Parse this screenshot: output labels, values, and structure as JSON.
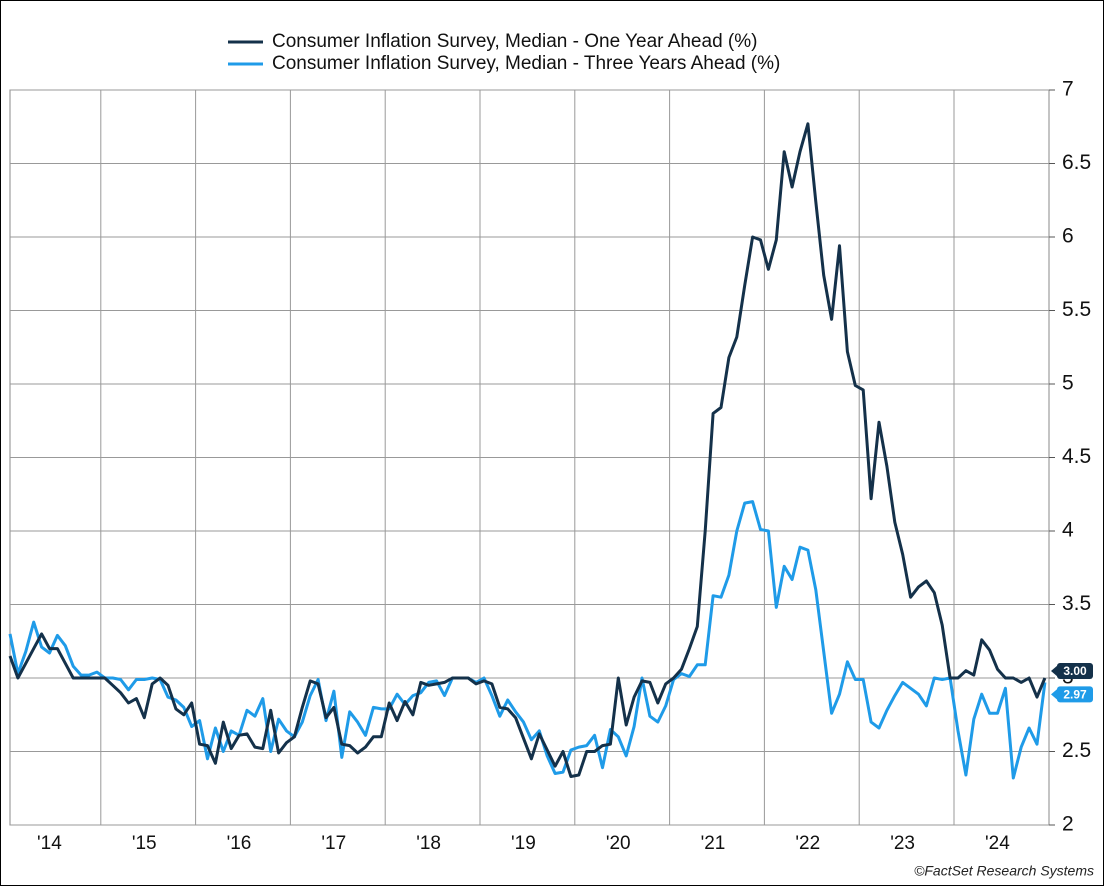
{
  "chart_data": {
    "type": "line",
    "categories": [
      null,
      null,
      null,
      null,
      null,
      null,
      "'14",
      null,
      null,
      null,
      null,
      null,
      null,
      null,
      null,
      null,
      null,
      null,
      "'15",
      null,
      null,
      null,
      null,
      null,
      null,
      null,
      null,
      null,
      null,
      null,
      "'16",
      null,
      null,
      null,
      null,
      null,
      null,
      null,
      null,
      null,
      null,
      null,
      "'17",
      null,
      null,
      null,
      null,
      null,
      null,
      null,
      null,
      null,
      null,
      null,
      "'18",
      null,
      null,
      null,
      null,
      null,
      null,
      null,
      null,
      null,
      null,
      null,
      "'19",
      null,
      null,
      null,
      null,
      null,
      null,
      null,
      null,
      null,
      null,
      null,
      "'20",
      null,
      null,
      null,
      null,
      null,
      null,
      null,
      null,
      null,
      null,
      null,
      "'21",
      null,
      null,
      null,
      null,
      null,
      null,
      null,
      null,
      null,
      null,
      null,
      "'22",
      null,
      null,
      null,
      null,
      null,
      null,
      null,
      null,
      null,
      null,
      null,
      "'23",
      null,
      null,
      null,
      null,
      null,
      null,
      null,
      null,
      null,
      null,
      null,
      "'24",
      null,
      null,
      null,
      null,
      null
    ],
    "series": [
      {
        "name": "Consumer Inflation Survey, Median - One Year Ahead (%)",
        "color": "#14314a",
        "values": [
          3.15,
          3.0,
          3.1,
          3.2,
          3.3,
          3.2,
          3.2,
          3.1,
          3.0,
          3.0,
          3.0,
          3.0,
          3.0,
          2.95,
          2.9,
          2.83,
          2.86,
          2.73,
          2.96,
          3.0,
          2.95,
          2.79,
          2.75,
          2.83,
          2.55,
          2.54,
          2.42,
          2.7,
          2.52,
          2.61,
          2.62,
          2.53,
          2.52,
          2.78,
          2.49,
          2.56,
          2.6,
          2.8,
          2.98,
          2.96,
          2.73,
          2.8,
          2.55,
          2.54,
          2.49,
          2.53,
          2.6,
          2.6,
          2.83,
          2.71,
          2.84,
          2.75,
          2.97,
          2.95,
          2.96,
          2.97,
          3.0,
          3.0,
          3.0,
          2.96,
          2.98,
          2.96,
          2.8,
          2.79,
          2.73,
          2.59,
          2.45,
          2.62,
          2.51,
          2.4,
          2.5,
          2.33,
          2.34,
          2.5,
          2.5,
          2.54,
          2.55,
          3.0,
          2.68,
          2.87,
          2.98,
          2.97,
          2.83,
          2.96,
          3.0,
          3.06,
          3.2,
          3.35,
          4.0,
          4.8,
          4.84,
          5.18,
          5.32,
          5.67,
          6.0,
          5.98,
          5.78,
          5.98,
          6.58,
          6.34,
          6.58,
          6.77,
          6.24,
          5.74,
          5.44,
          5.94,
          5.22,
          4.99,
          4.96,
          4.22,
          4.74,
          4.44,
          4.06,
          3.84,
          3.55,
          3.62,
          3.66,
          3.58,
          3.36,
          3.0,
          3.0,
          3.05,
          3.02,
          3.26,
          3.19,
          3.06,
          3.0,
          3.0,
          2.97,
          3.0,
          2.87,
          3.0
        ],
        "value_labels": [
          null,
          null,
          null,
          null,
          null,
          null,
          null,
          null,
          null,
          null,
          null,
          null,
          null,
          null,
          null,
          null,
          null,
          null,
          null,
          null,
          null,
          null,
          null,
          null,
          null,
          null,
          null,
          null,
          null,
          null,
          null,
          null,
          null,
          null,
          null,
          null,
          null,
          null,
          null,
          null,
          null,
          null,
          null,
          null,
          null,
          null,
          null,
          null,
          null,
          null,
          null,
          null,
          null,
          null,
          null,
          null,
          null,
          null,
          null,
          null,
          null,
          null,
          null,
          null,
          null,
          null,
          null,
          null,
          null,
          null,
          null,
          null,
          null,
          null,
          null,
          null,
          null,
          null,
          null,
          null,
          null,
          null,
          null,
          null,
          null,
          null,
          null,
          null,
          null,
          null,
          null,
          null,
          null,
          null,
          null,
          null,
          null,
          null,
          null,
          null,
          null,
          null,
          null,
          null,
          null,
          null,
          null,
          null,
          null,
          null,
          null,
          null,
          null,
          null,
          null,
          null,
          null,
          null,
          null,
          null,
          null,
          null,
          null,
          null,
          null,
          null,
          null,
          null,
          null,
          null,
          null,
          "3.00"
        ]
      },
      {
        "name": "Consumer Inflation Survey, Median - Three Years Ahead (%)",
        "color": "#1f9be8",
        "values": [
          3.3,
          3.03,
          3.18,
          3.38,
          3.21,
          3.17,
          3.29,
          3.22,
          3.08,
          3.02,
          3.02,
          3.04,
          3.0,
          3.0,
          2.99,
          2.92,
          2.99,
          2.99,
          3.0,
          2.99,
          2.87,
          2.85,
          2.8,
          2.67,
          2.71,
          2.45,
          2.66,
          2.5,
          2.64,
          2.61,
          2.78,
          2.74,
          2.86,
          2.5,
          2.72,
          2.64,
          2.6,
          2.7,
          2.88,
          2.99,
          2.71,
          2.91,
          2.46,
          2.77,
          2.7,
          2.61,
          2.8,
          2.79,
          2.79,
          2.89,
          2.82,
          2.88,
          2.9,
          2.97,
          2.98,
          2.88,
          3.0,
          3.0,
          3.0,
          2.97,
          3.0,
          2.88,
          2.74,
          2.85,
          2.77,
          2.7,
          2.58,
          2.64,
          2.47,
          2.35,
          2.36,
          2.51,
          2.53,
          2.54,
          2.61,
          2.39,
          2.65,
          2.6,
          2.47,
          2.67,
          3.0,
          2.74,
          2.7,
          2.81,
          2.99,
          3.03,
          3.01,
          3.09,
          3.09,
          3.56,
          3.55,
          3.7,
          4.0,
          4.19,
          4.2,
          4.01,
          4.0,
          3.48,
          3.76,
          3.67,
          3.89,
          3.87,
          3.6,
          3.18,
          2.76,
          2.89,
          3.11,
          2.99,
          2.99,
          2.7,
          2.66,
          2.78,
          2.88,
          2.97,
          2.93,
          2.89,
          2.81,
          3.0,
          2.99,
          3.0,
          2.64,
          2.34,
          2.72,
          2.89,
          2.76,
          2.76,
          2.93,
          2.32,
          2.53,
          2.66,
          2.55,
          2.97
        ],
        "value_labels": [
          null,
          null,
          null,
          null,
          null,
          null,
          null,
          null,
          null,
          null,
          null,
          null,
          null,
          null,
          null,
          null,
          null,
          null,
          null,
          null,
          null,
          null,
          null,
          null,
          null,
          null,
          null,
          null,
          null,
          null,
          null,
          null,
          null,
          null,
          null,
          null,
          null,
          null,
          null,
          null,
          null,
          null,
          null,
          null,
          null,
          null,
          null,
          null,
          null,
          null,
          null,
          null,
          null,
          null,
          null,
          null,
          null,
          null,
          null,
          null,
          null,
          null,
          null,
          null,
          null,
          null,
          null,
          null,
          null,
          null,
          null,
          null,
          null,
          null,
          null,
          null,
          null,
          null,
          null,
          null,
          null,
          null,
          null,
          null,
          null,
          null,
          null,
          null,
          null,
          null,
          null,
          null,
          null,
          null,
          null,
          null,
          null,
          null,
          null,
          null,
          null,
          null,
          null,
          null,
          null,
          null,
          null,
          null,
          null,
          null,
          null,
          null,
          null,
          null,
          null,
          null,
          null,
          null,
          null,
          null,
          null,
          null,
          null,
          null,
          null,
          null,
          null,
          null,
          null,
          null,
          null,
          "2.97"
        ]
      }
    ],
    "ylim": [
      2,
      7
    ],
    "yticks": [
      2,
      2.5,
      3,
      3.5,
      4,
      4.5,
      5,
      5.5,
      6,
      6.5,
      7
    ],
    "grid": true,
    "legend": "top",
    "source": "©FactSet Research Systems"
  }
}
